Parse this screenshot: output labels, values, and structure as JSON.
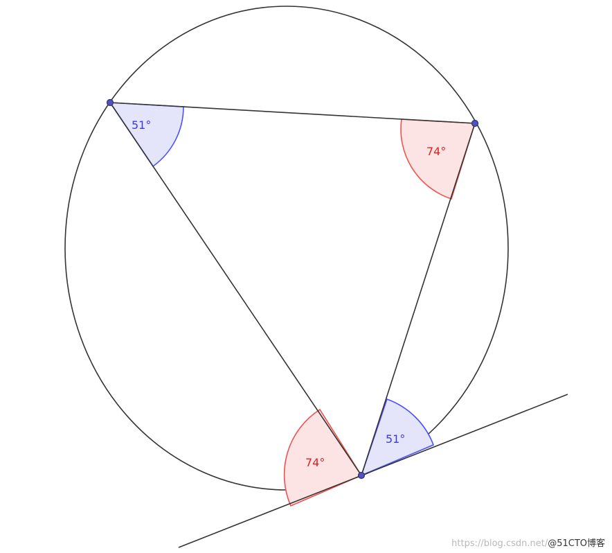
{
  "colors": {
    "stroke": "#333333",
    "point_fill": "#5050c8",
    "blue_stroke": "#4b50ff",
    "blue_fill": "#e4e4fa",
    "blue_text": "#3a3ad8",
    "red_stroke": "#f05050",
    "red_fill": "#fce4e4",
    "red_text": "#e02020"
  },
  "angles": {
    "top_left": "51°",
    "top_right": "74°",
    "bottom_tangent_left": "74°",
    "bottom_tangent_right": "51°"
  },
  "watermark": {
    "url": "https://blog.csdn.net/",
    "brand": "@51CTO博客"
  }
}
